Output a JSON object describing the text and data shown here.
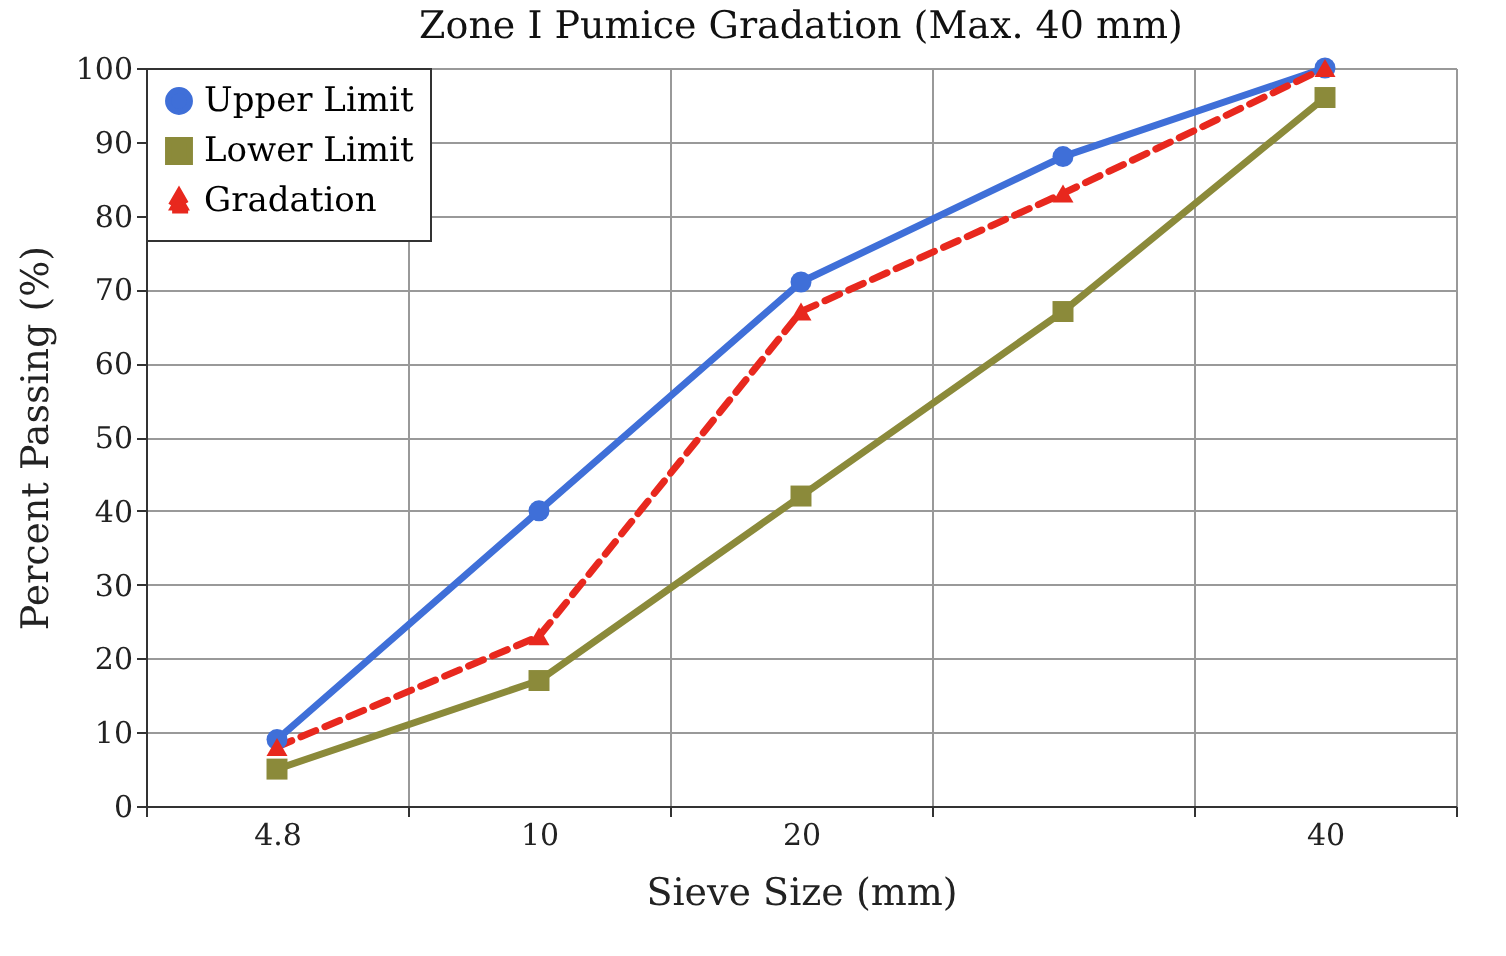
{
  "chart_data": {
    "type": "line",
    "title": "Zone I Pumice Gradation (Max. 40 mm)",
    "xlabel": "Sieve Size (mm)",
    "ylabel": "Percent Passing (%)",
    "categories": [
      "4.8",
      "10",
      "20",
      null,
      "40"
    ],
    "ylim": [
      0,
      100
    ],
    "yticks": [
      0,
      10,
      20,
      30,
      40,
      50,
      60,
      70,
      80,
      90,
      100
    ],
    "grid": true,
    "legend": "top left",
    "series": [
      {
        "name": "Upper Limit",
        "color": "#3f6fd8",
        "marker": "circle",
        "line_style": "solid",
        "values": [
          9,
          40,
          71,
          88,
          100
        ]
      },
      {
        "name": "Lower Limit",
        "color": "#8b8a3a",
        "marker": "square",
        "line_style": "solid",
        "values": [
          5,
          17,
          42,
          67,
          96
        ]
      },
      {
        "name": "Gradation",
        "color": "#e8281e",
        "marker": "triangle",
        "line_style": "dashed",
        "values": [
          8,
          23,
          67,
          83,
          100
        ]
      }
    ]
  }
}
